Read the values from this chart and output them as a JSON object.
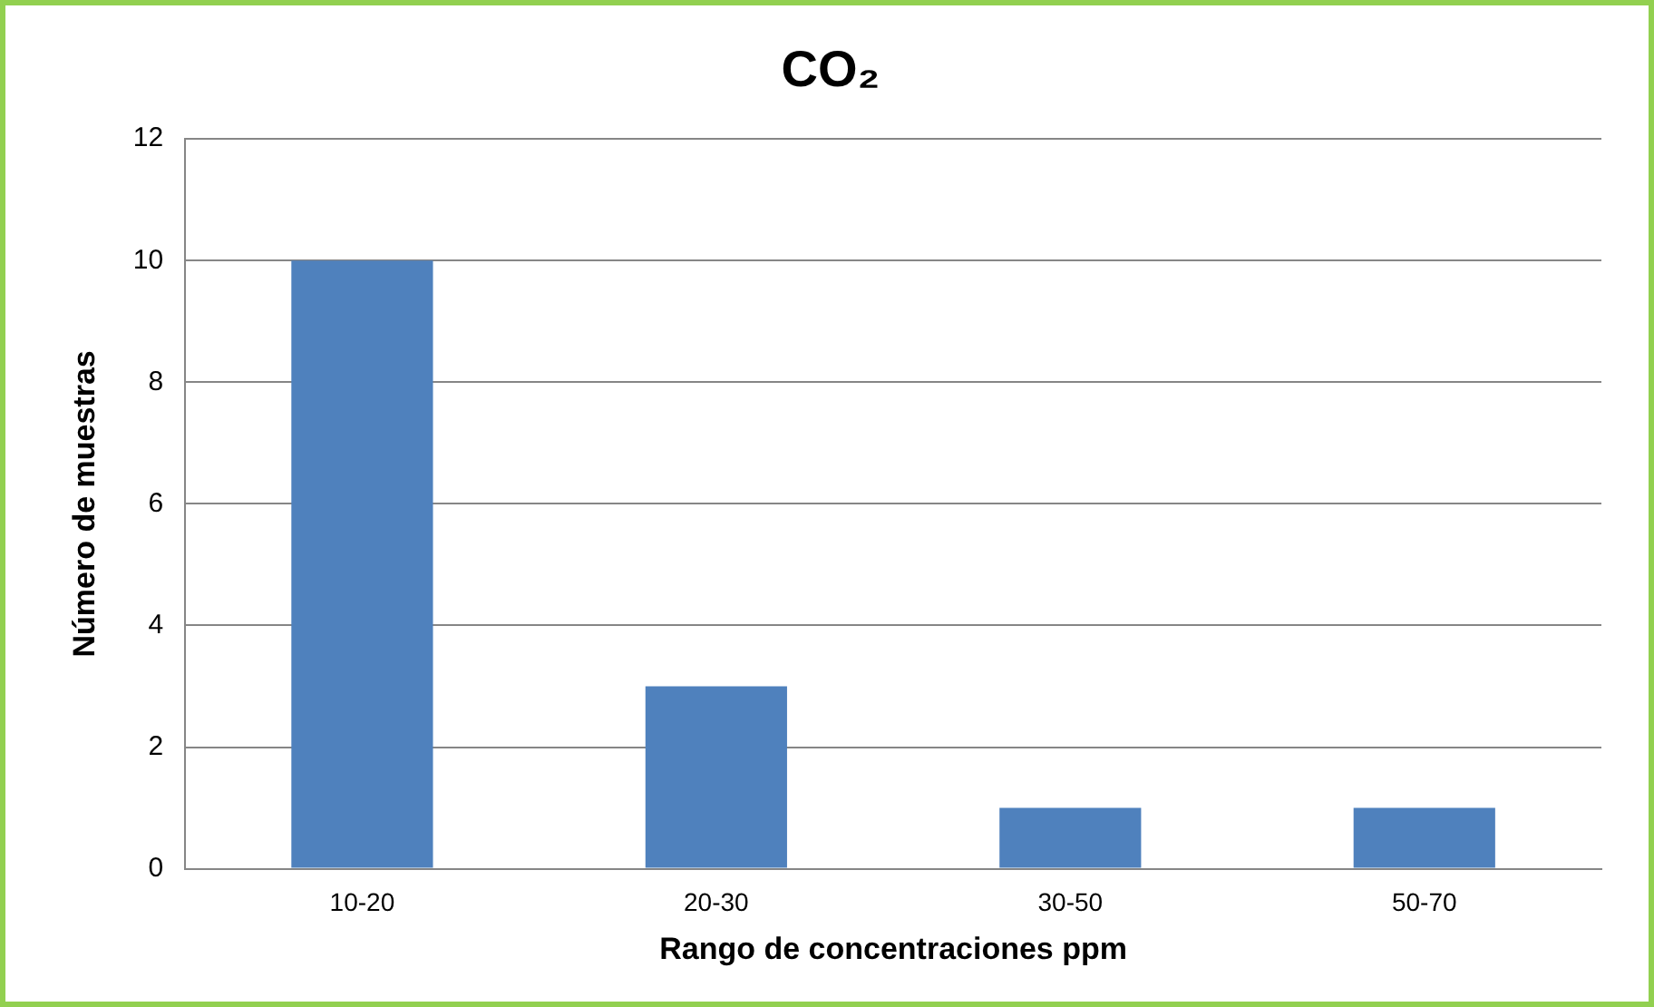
{
  "chart_data": {
    "type": "bar",
    "title": "CO₂",
    "xlabel": "Rango de concentraciones ppm",
    "ylabel": "Número de muestras",
    "categories": [
      "10-20",
      "20-30",
      "30-50",
      "50-70"
    ],
    "values": [
      10,
      3,
      1,
      1
    ],
    "color": "#4f81bd",
    "ylim": [
      0,
      12
    ],
    "yticks": [
      0,
      2,
      4,
      6,
      8,
      10,
      12
    ],
    "grid": "y"
  }
}
